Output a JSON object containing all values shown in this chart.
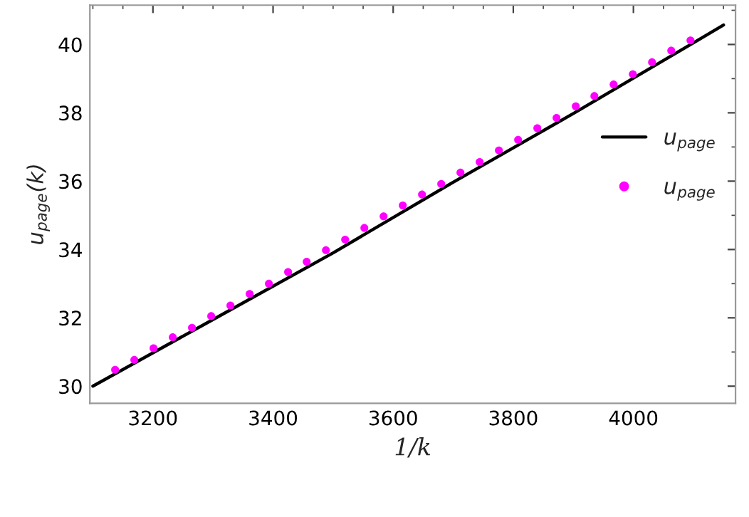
{
  "chart_data": {
    "type": "line",
    "xlabel": "1/k",
    "ylabel": "u$_{page}$(k)",
    "xlim": [
      3095,
      4170
    ],
    "xticks": [
      3200,
      3400,
      3600,
      3800,
      4000
    ],
    "ylim": [
      29.5,
      41.15
    ],
    "yticks": [
      30,
      32,
      34,
      36,
      38,
      40
    ],
    "grid": false,
    "legend": "right",
    "series": [
      {
        "name": "u$_{page}$",
        "color": "#000000",
        "line_style": "solid",
        "marker": "none",
        "x": [
          3100,
          3300,
          3500,
          3700,
          3900,
          4100,
          4150
        ],
        "values": [
          30.0,
          31.95,
          33.9,
          35.97,
          37.98,
          40.05,
          40.57
        ]
      },
      {
        "name": "u$_{page}$",
        "type": "scatter",
        "color": "#ff00ff",
        "marker": "circle",
        "x": [
          3137,
          3169,
          3201,
          3233,
          3265,
          3297,
          3329,
          3361,
          3393,
          3425,
          3456,
          3488,
          3520,
          3552,
          3584,
          3616,
          3648,
          3680,
          3712,
          3744,
          3776,
          3808,
          3840,
          3872,
          3904,
          3935,
          3967,
          3999,
          4031,
          4063,
          4095
        ],
        "values": [
          30.48,
          30.77,
          31.11,
          31.43,
          31.71,
          32.05,
          32.36,
          32.7,
          33.0,
          33.34,
          33.64,
          33.98,
          34.29,
          34.63,
          34.97,
          35.29,
          35.61,
          35.92,
          36.25,
          36.56,
          36.9,
          37.21,
          37.55,
          37.85,
          38.19,
          38.49,
          38.83,
          39.13,
          39.48,
          39.82,
          40.12
        ]
      }
    ]
  }
}
